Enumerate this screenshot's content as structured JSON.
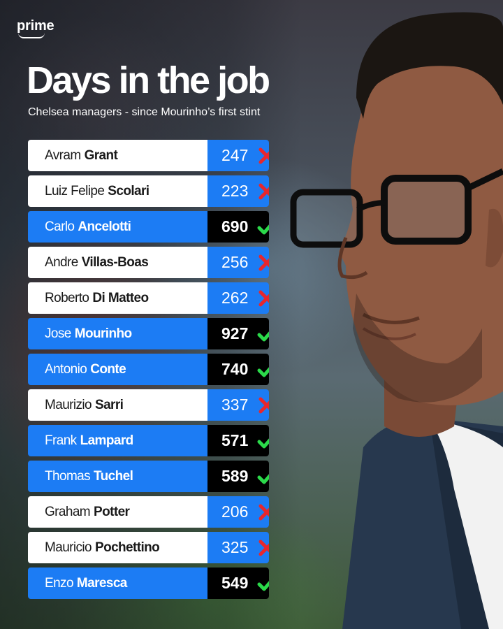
{
  "brand": {
    "name": "prime"
  },
  "header": {
    "title": "Days in the job",
    "subtitle": "Chelsea managers - since Mourinho’s first stint"
  },
  "colors": {
    "accent_blue": "#1c7cf4",
    "success_tick": "#2bd94a",
    "fail_cross": "#e8262c"
  },
  "managers": [
    {
      "first": "Avram",
      "last": "Grant",
      "days": "247",
      "mark": "cross"
    },
    {
      "first": "Luiz Felipe",
      "last": "Scolari",
      "days": "223",
      "mark": "cross"
    },
    {
      "first": "Carlo",
      "last": "Ancelotti",
      "days": "690",
      "mark": "tick"
    },
    {
      "first": "Andre",
      "last": "Villas-Boas",
      "days": "256",
      "mark": "cross"
    },
    {
      "first": "Roberto",
      "last": "Di Matteo",
      "days": "262",
      "mark": "cross"
    },
    {
      "first": "Jose",
      "last": "Mourinho",
      "days": "927",
      "mark": "tick"
    },
    {
      "first": "Antonio",
      "last": "Conte",
      "days": "740",
      "mark": "tick"
    },
    {
      "first": "Maurizio",
      "last": "Sarri",
      "days": "337",
      "mark": "cross"
    },
    {
      "first": "Frank",
      "last": "Lampard",
      "days": "571",
      "mark": "tick"
    },
    {
      "first": "Thomas",
      "last": "Tuchel",
      "days": "589",
      "mark": "tick"
    },
    {
      "first": "Graham",
      "last": "Potter",
      "days": "206",
      "mark": "cross"
    },
    {
      "first": "Mauricio",
      "last": "Pochettino",
      "days": "325",
      "mark": "cross"
    },
    {
      "first": "Enzo",
      "last": "Maresca",
      "days": "549",
      "mark": "tick"
    }
  ]
}
